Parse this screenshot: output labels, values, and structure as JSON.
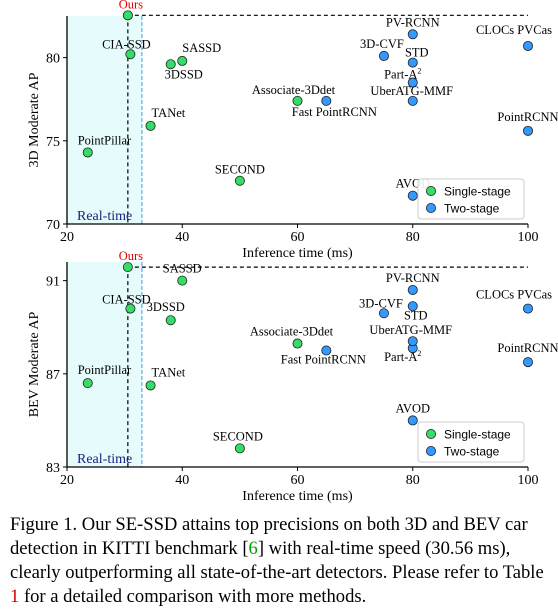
{
  "chart_data": [
    {
      "type": "scatter",
      "title": "",
      "xlabel": "Inference time (ms)",
      "ylabel": "3D Moderate AP",
      "xlim": [
        20,
        100
      ],
      "ylim": [
        70,
        82.5
      ],
      "xticks": [
        20,
        40,
        60,
        80,
        100
      ],
      "yticks": [
        70,
        75,
        80
      ],
      "grid": false,
      "legend_position": "lower-right",
      "realtime_label": "Real-time",
      "realtime_x": 33,
      "reference_x": 30.56,
      "reference_y": 82.54,
      "series": [
        {
          "name": "Single-stage",
          "color": "#33dd66",
          "points": [
            {
              "label": "Ours",
              "x": 30.56,
              "y": 82.54,
              "highlight": true
            },
            {
              "label": "CIA-SSD",
              "x": 31,
              "y": 80.2
            },
            {
              "label": "SASSD",
              "x": 40,
              "y": 79.8
            },
            {
              "label": "3DSSD",
              "x": 38,
              "y": 79.6
            },
            {
              "label": "TANet",
              "x": 34.5,
              "y": 75.9
            },
            {
              "label": "PointPillar",
              "x": 23.6,
              "y": 74.3
            },
            {
              "label": "SECOND",
              "x": 50,
              "y": 72.6
            },
            {
              "label": "Associate-3Ddet",
              "x": 60,
              "y": 77.4
            }
          ]
        },
        {
          "name": "Two-stage",
          "color": "#3399ff",
          "points": [
            {
              "label": "PV-RCNN",
              "x": 80,
              "y": 81.4
            },
            {
              "label": "3D-CVF",
              "x": 75,
              "y": 80.1
            },
            {
              "label": "STD",
              "x": 80,
              "y": 79.7
            },
            {
              "label": "Part-A",
              "x": 80,
              "y": 78.5
            },
            {
              "label": "UberATG-MMF",
              "x": 80,
              "y": 77.4
            },
            {
              "label": "Fast PointRCNN",
              "x": 65,
              "y": 77.4
            },
            {
              "label": "CLOCs PVCas",
              "x": 100,
              "y": 80.7
            },
            {
              "label": "PointRCNN",
              "x": 100,
              "y": 75.6
            },
            {
              "label": "AVOD",
              "x": 80,
              "y": 71.7
            }
          ]
        }
      ]
    },
    {
      "type": "scatter",
      "title": "",
      "xlabel": "Inference time (ms)",
      "ylabel": "BEV Moderate AP",
      "xlim": [
        20,
        100
      ],
      "ylim": [
        83,
        91.8
      ],
      "xticks": [
        20,
        40,
        60,
        80,
        100
      ],
      "yticks": [
        83,
        87,
        91
      ],
      "grid": false,
      "legend_position": "lower-right",
      "realtime_label": "Real-time",
      "realtime_x": 33,
      "reference_x": 30.56,
      "reference_y": 91.58,
      "series": [
        {
          "name": "Single-stage",
          "color": "#33dd66",
          "points": [
            {
              "label": "Ours",
              "x": 30.56,
              "y": 91.58,
              "highlight": true
            },
            {
              "label": "CIA-SSD",
              "x": 31,
              "y": 89.8
            },
            {
              "label": "SASSD",
              "x": 40,
              "y": 91.0
            },
            {
              "label": "3DSSD",
              "x": 38,
              "y": 89.3
            },
            {
              "label": "TANet",
              "x": 34.5,
              "y": 86.5
            },
            {
              "label": "PointPillar",
              "x": 23.6,
              "y": 86.6
            },
            {
              "label": "SECOND",
              "x": 50,
              "y": 83.8
            },
            {
              "label": "Associate-3Ddet",
              "x": 60,
              "y": 88.3
            }
          ]
        },
        {
          "name": "Two-stage",
          "color": "#3399ff",
          "points": [
            {
              "label": "PV-RCNN",
              "x": 80,
              "y": 90.6
            },
            {
              "label": "3D-CVF",
              "x": 75,
              "y": 89.6
            },
            {
              "label": "STD",
              "x": 80,
              "y": 89.9
            },
            {
              "label": "Part-A",
              "x": 80,
              "y": 88.1
            },
            {
              "label": "UberATG-MMF",
              "x": 80,
              "y": 88.4
            },
            {
              "label": "Fast PointRCNN",
              "x": 65,
              "y": 88.0
            },
            {
              "label": "CLOCs PVCas",
              "x": 100,
              "y": 89.8
            },
            {
              "label": "PointRCNN",
              "x": 100,
              "y": 87.5
            },
            {
              "label": "AVOD",
              "x": 80,
              "y": 85.0
            }
          ]
        }
      ]
    }
  ],
  "superscripts": {
    "Part-A": "2"
  },
  "caption": {
    "prefix": "Figure 1. Our SE-SSD attains top precisions on both 3D and BEV car detection in KITTI benchmark [",
    "ref1": "6",
    "middle": "] with real-time speed (30.56 ms), clearly outperforming all state-of-the-art detectors. Please refer to Table ",
    "ref2": "1",
    "suffix": " for a detailed comparison with more methods."
  }
}
